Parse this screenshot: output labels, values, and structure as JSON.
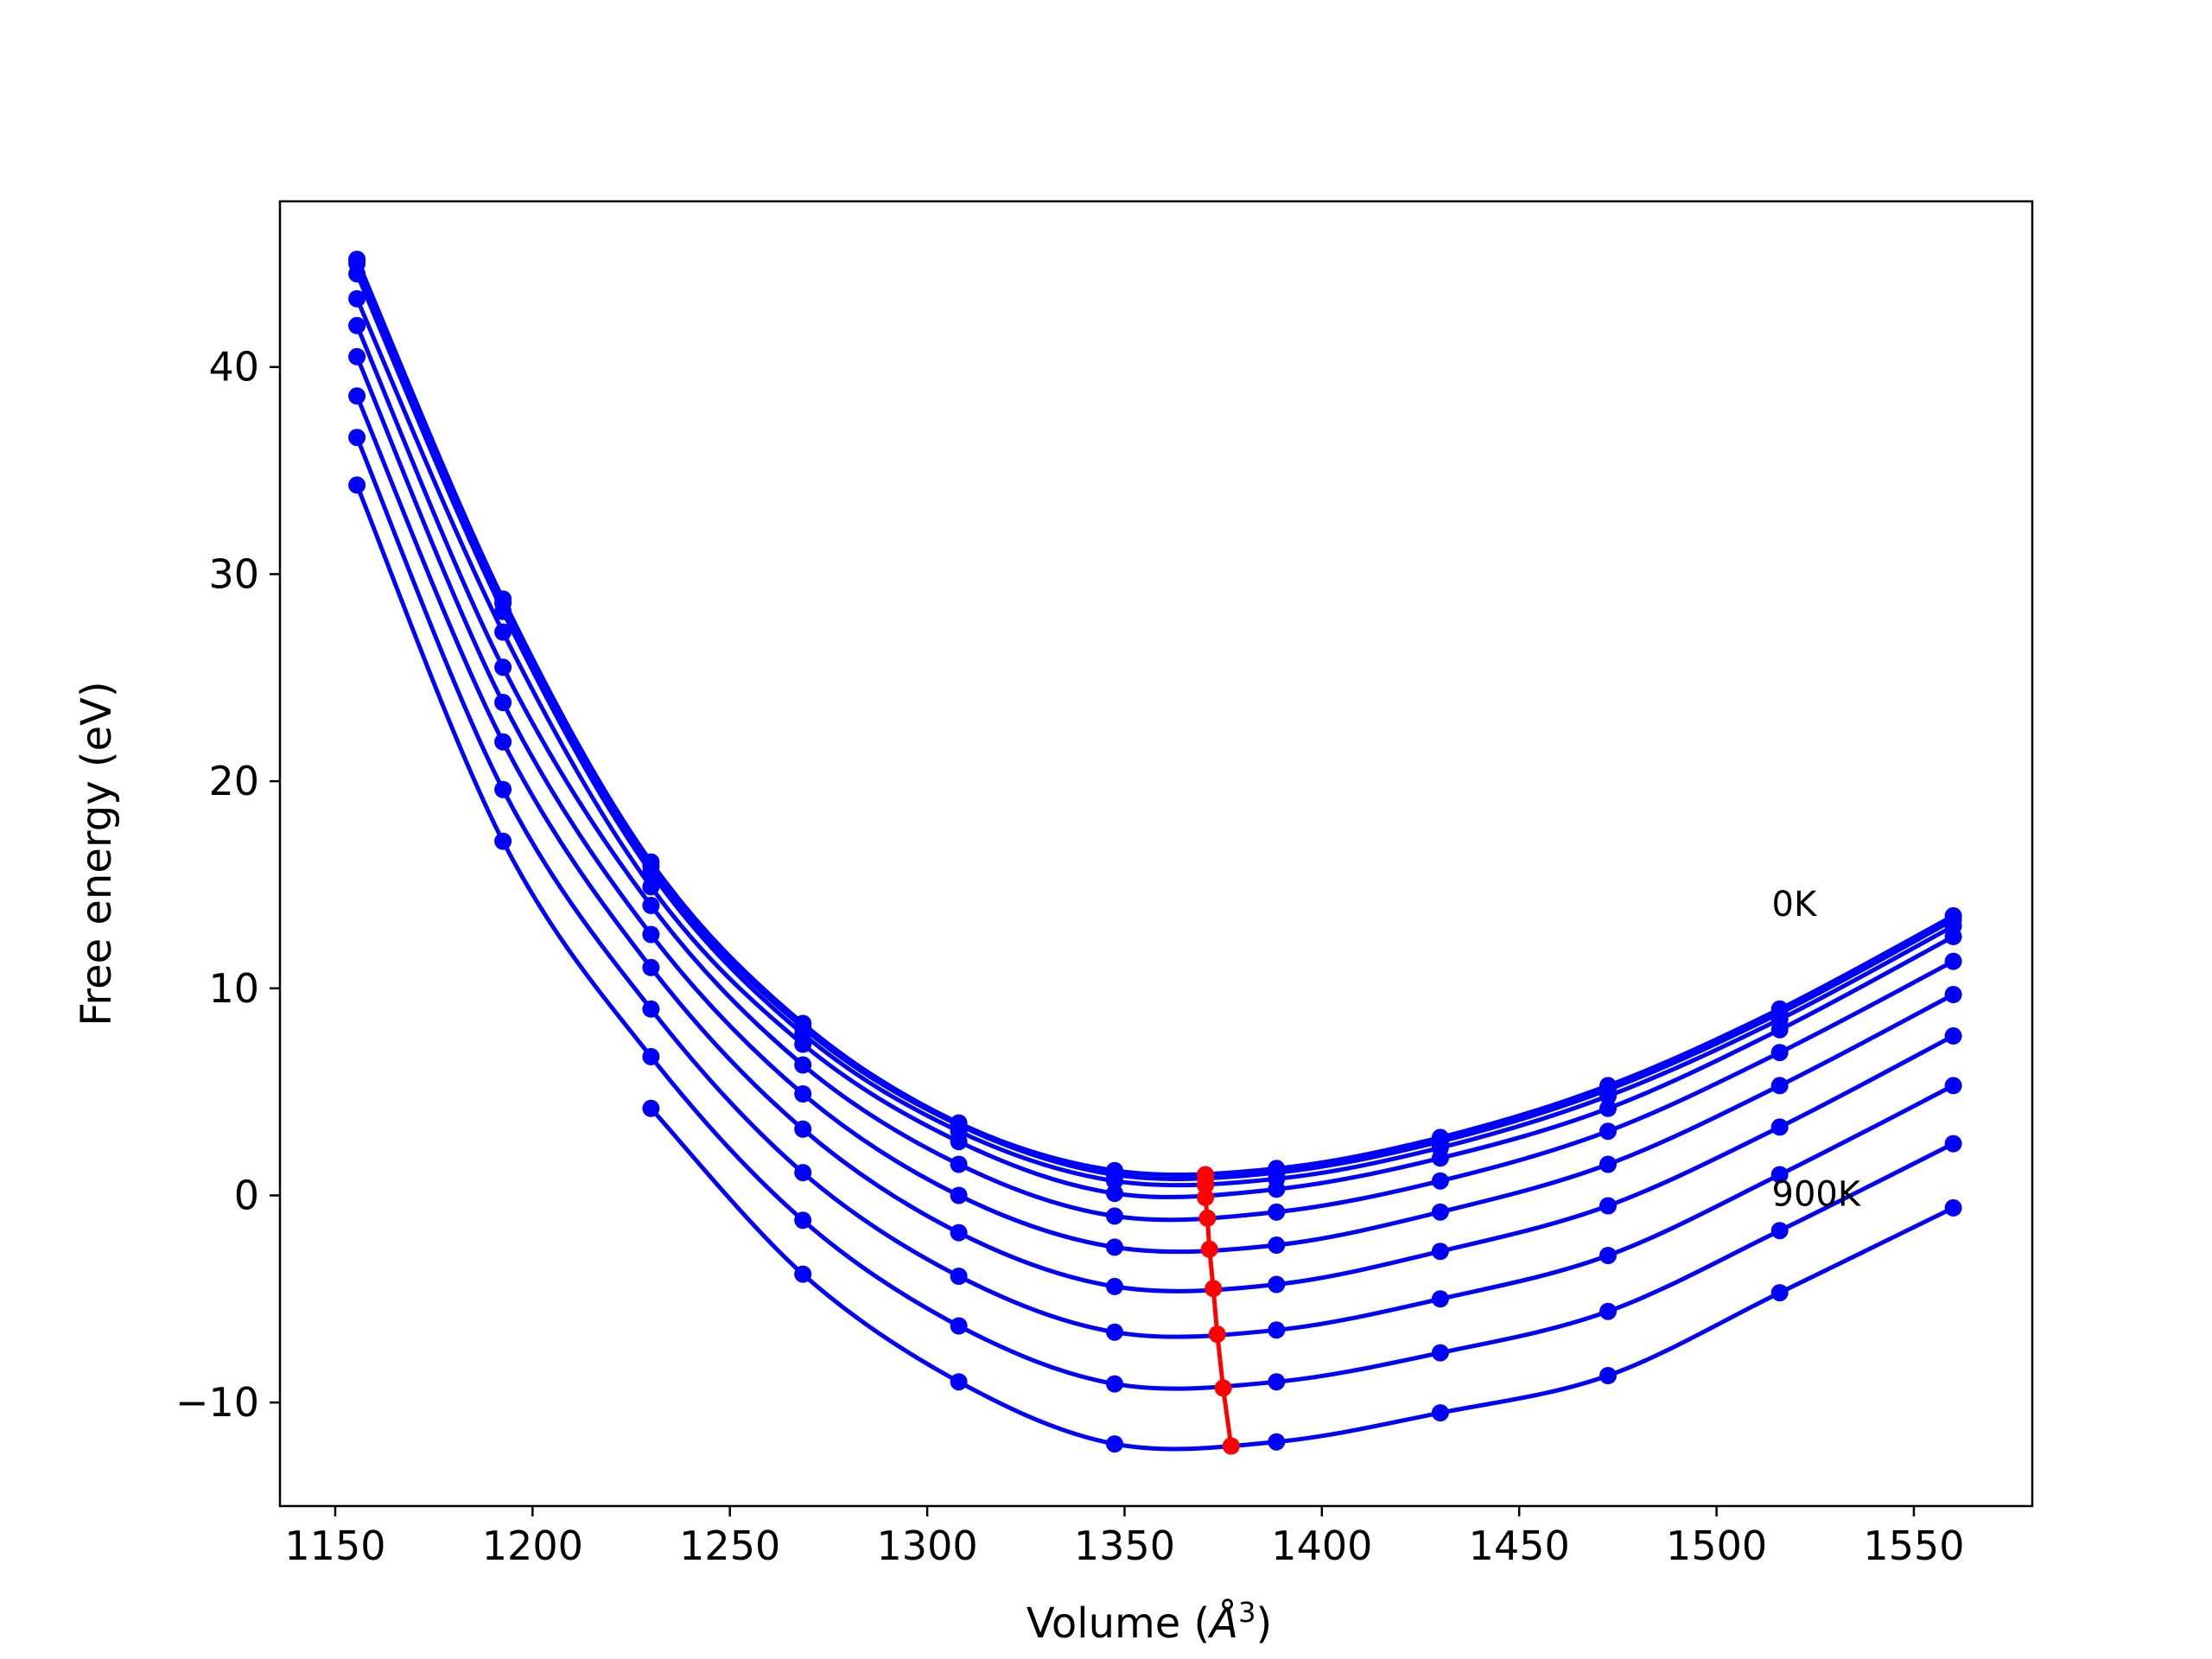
{
  "chart_data": {
    "type": "line",
    "xlabel": "Volume (",
    "xlabel_unit": "Å",
    "xlabel_exp": "3",
    "xlabel_close": ")",
    "ylabel": "Free energy (eV)",
    "xlim": [
      1136,
      1580
    ],
    "ylim": [
      -15,
      48
    ],
    "xticks": [
      1150,
      1200,
      1250,
      1300,
      1350,
      1400,
      1450,
      1500,
      1550
    ],
    "yticks": [
      -10,
      0,
      10,
      20,
      30,
      40
    ],
    "xtick_labels": [
      "1150",
      "1200",
      "1250",
      "1300",
      "1350",
      "1400",
      "1450",
      "1500",
      "1550"
    ],
    "ytick_labels": [
      "−10",
      "0",
      "10",
      "20",
      "30",
      "40"
    ],
    "grid": false,
    "curve_color": "#0000ff",
    "min_line_color": "#ff0000",
    "annotations": [
      {
        "text": "0K",
        "x": 1514,
        "y": 13.5
      },
      {
        "text": "900K",
        "x": 1514,
        "y": -0.5
      }
    ],
    "x": [
      1155.5,
      1192.5,
      1230.0,
      1268.5,
      1308.0,
      1347.5,
      1388.5,
      1430.0,
      1472.5,
      1516.0,
      1560.0
    ],
    "series": [
      {
        "values": [
          45.2,
          28.8,
          16.1,
          8.3,
          3.5,
          1.2,
          1.3,
          2.8,
          5.3,
          9.0,
          13.5
        ]
      },
      {
        "values": [
          45.0,
          28.6,
          15.9,
          8.1,
          3.4,
          1.0,
          1.1,
          2.6,
          5.1,
          8.8,
          13.3
        ]
      },
      {
        "values": [
          44.5,
          28.2,
          15.6,
          7.8,
          3.1,
          0.7,
          0.8,
          2.3,
          4.8,
          8.5,
          13.0
        ]
      },
      {
        "values": [
          43.3,
          27.2,
          14.9,
          7.3,
          2.6,
          0.1,
          0.3,
          1.8,
          4.2,
          8.0,
          12.5
        ]
      },
      {
        "values": [
          42.0,
          25.5,
          14.0,
          6.3,
          1.5,
          -1.0,
          -0.8,
          0.7,
          3.1,
          6.9,
          11.3
        ]
      },
      {
        "values": [
          40.5,
          23.8,
          12.6,
          4.9,
          0.0,
          -2.5,
          -2.4,
          -0.8,
          1.5,
          5.3,
          9.7
        ]
      },
      {
        "values": [
          38.6,
          21.9,
          11.0,
          3.2,
          -1.8,
          -4.4,
          -4.3,
          -2.7,
          -0.5,
          3.3,
          7.7
        ]
      },
      {
        "values": [
          36.6,
          19.6,
          9.0,
          1.1,
          -3.9,
          -6.6,
          -6.5,
          -5.0,
          -2.9,
          1.0,
          5.3
        ]
      },
      {
        "values": [
          34.3,
          17.1,
          6.7,
          -1.2,
          -6.3,
          -9.1,
          -9.0,
          -7.6,
          -5.6,
          -1.7,
          2.5
        ]
      },
      {
        "values": [
          null,
          null,
          4.2,
          -3.8,
          -9.0,
          -12.0,
          -11.9,
          -10.5,
          -8.7,
          -4.7,
          -0.6
        ]
      }
    ],
    "minima": {
      "x": [
        1370.5,
        1370.5,
        1370.5,
        1370.5,
        1371.0,
        1371.5,
        1372.5,
        1373.5,
        1375.0,
        1377.0
      ],
      "y": [
        1.0,
        0.8,
        0.5,
        -0.1,
        -1.1,
        -2.6,
        -4.5,
        -6.7,
        -9.3,
        -12.1
      ]
    }
  }
}
